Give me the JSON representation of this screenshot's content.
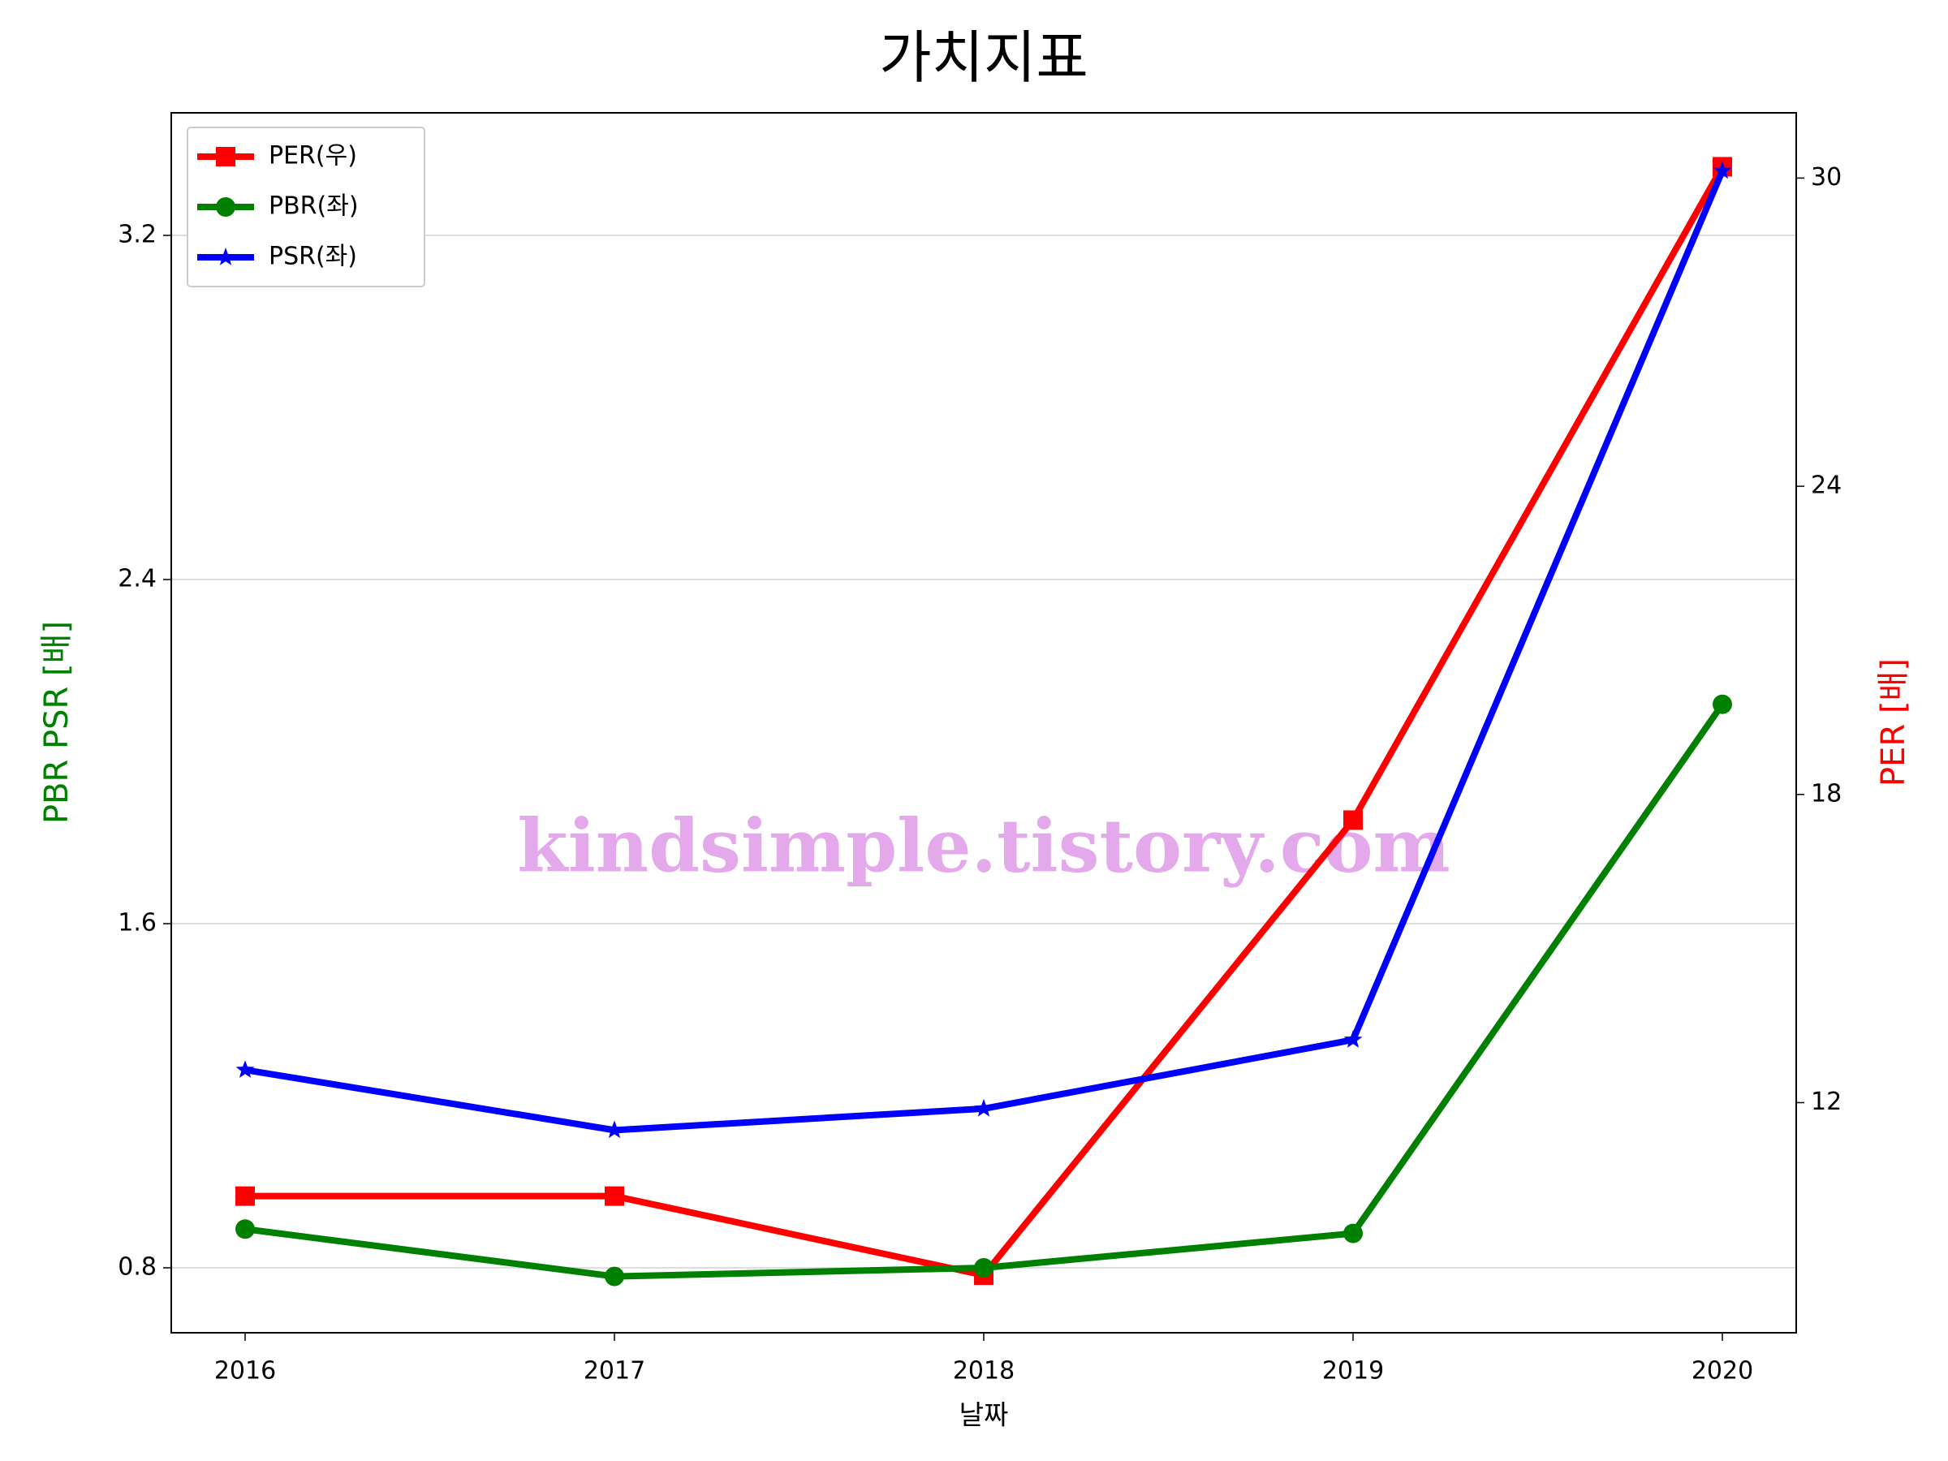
{
  "chart_data": {
    "type": "line",
    "title": "가치지표",
    "x_label": "날짜",
    "y_label": "PBR PSR [배]",
    "y2_label": "PER [배]",
    "y_label_color": "#008000",
    "y2_label_color": "#ff0000",
    "annotation": "kindsimple.tistory.com",
    "x": [
      2016,
      2017,
      2018,
      2019,
      2020
    ],
    "xlim": [
      2015.8,
      2020.2
    ],
    "xticks": [
      2016,
      2017,
      2018,
      2019,
      2020
    ],
    "ylim": [
      0.649,
      3.485
    ],
    "yticks": [
      0.8,
      1.6,
      2.4,
      3.2
    ],
    "y2lim": [
      7.52,
      31.27
    ],
    "y2ticks": [
      12,
      18,
      24,
      30
    ],
    "grid": true,
    "legend": "upper left",
    "series": [
      {
        "name": "PER(우)",
        "color": "#ff0000",
        "marker": "square",
        "axis": "y2",
        "values": [
          10.18,
          10.18,
          8.64,
          17.5,
          30.22
        ]
      },
      {
        "name": "PBR(좌)",
        "color": "#008000",
        "marker": "circle",
        "values": [
          0.89,
          0.78,
          0.8,
          0.88,
          2.11
        ]
      },
      {
        "name": "PSR(좌)",
        "color": "#0000ff",
        "marker": "star",
        "values": [
          1.26,
          1.12,
          1.17,
          1.33,
          3.35
        ]
      }
    ]
  }
}
